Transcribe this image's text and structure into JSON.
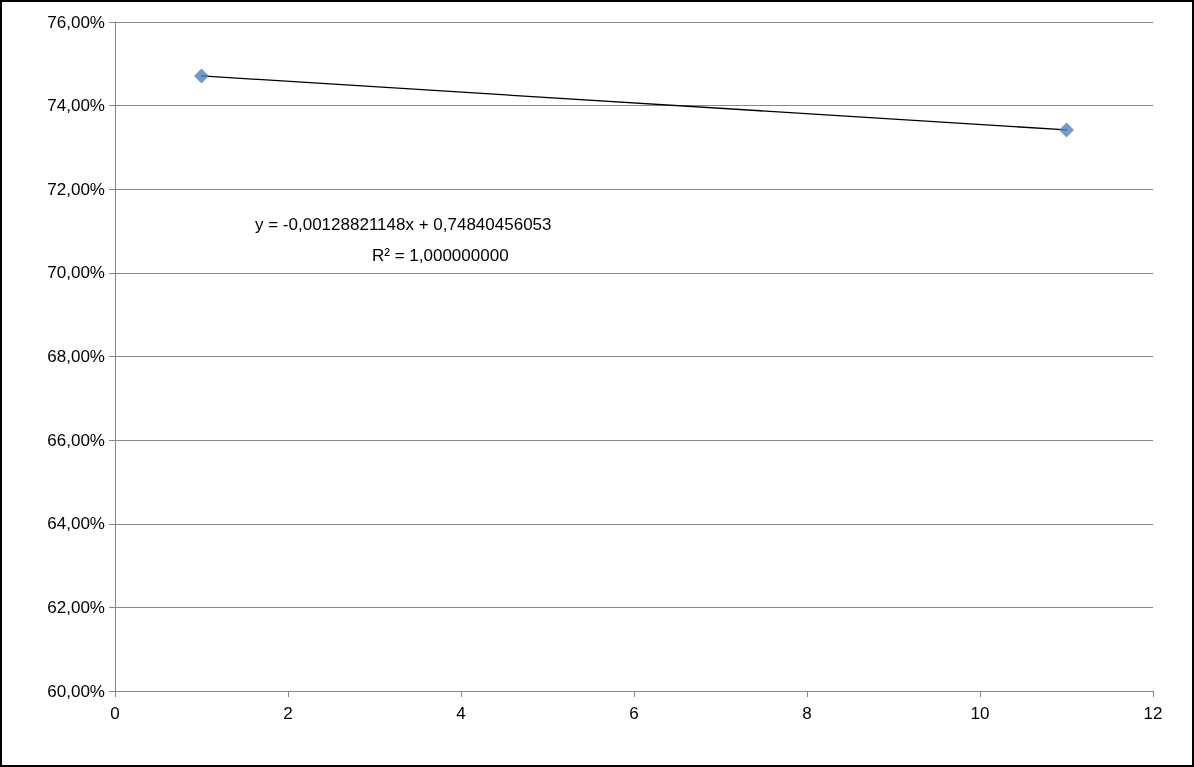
{
  "chart_data": {
    "type": "scatter",
    "x": [
      1,
      11
    ],
    "xlim": [
      0,
      12
    ],
    "xticks": [
      0,
      2,
      4,
      6,
      8,
      10,
      12
    ],
    "ylim": [
      60,
      76
    ],
    "yticks": [
      {
        "value": 60,
        "label": "60,00%"
      },
      {
        "value": 62,
        "label": "62,00%"
      },
      {
        "value": 64,
        "label": "64,00%"
      },
      {
        "value": 66,
        "label": "66,00%"
      },
      {
        "value": 68,
        "label": "68,00%"
      },
      {
        "value": 70,
        "label": "70,00%"
      },
      {
        "value": 72,
        "label": "72,00%"
      },
      {
        "value": 74,
        "label": "74,00%"
      },
      {
        "value": 76,
        "label": "76,00%"
      }
    ],
    "grid": "y",
    "annotations": [
      "y = -0,00128821148x + 0,74840456053",
      "R² = 1,000000000"
    ],
    "series": [
      {
        "type": "line",
        "values": [
          74.71,
          73.42
        ],
        "color": "#000000",
        "marker": "none",
        "line_style": "solid"
      },
      {
        "values": [
          74.71,
          73.42
        ],
        "color": "#4f81bd",
        "marker": "diamond"
      }
    ]
  }
}
